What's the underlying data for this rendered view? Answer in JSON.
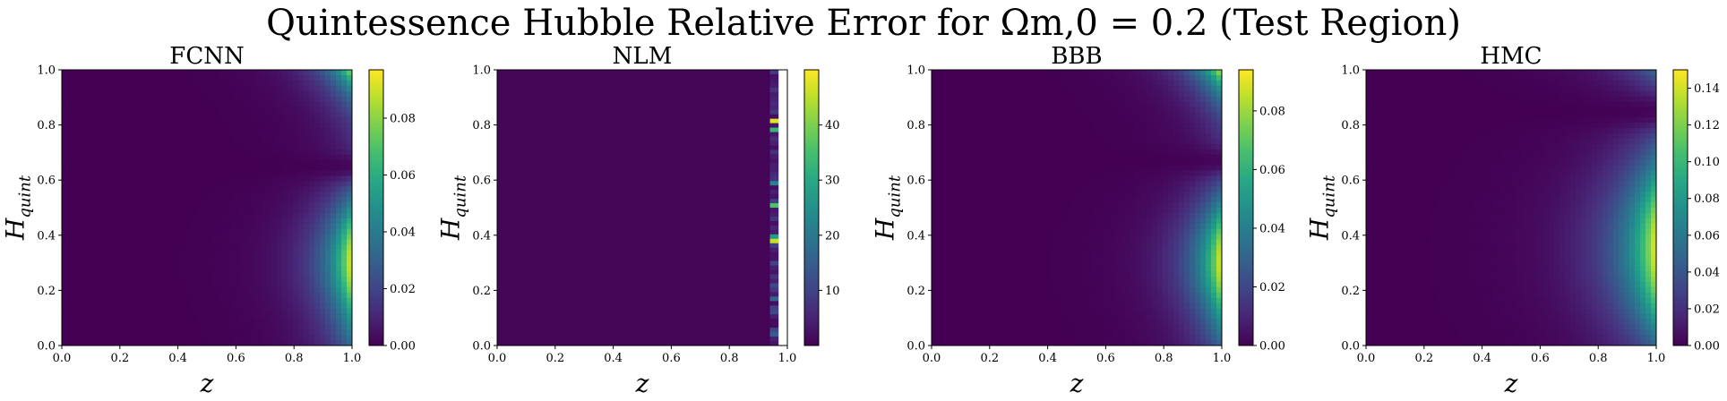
{
  "figure": {
    "title": "Quintessence Hubble Relative Error for Ωm,0 = 0.2 (Test Region)"
  },
  "chart_data": [
    {
      "type": "heatmap",
      "title": "FCNN",
      "xlabel": "z",
      "ylabel": "Hquint",
      "xlim": [
        0.0,
        1.0
      ],
      "ylim": [
        0.0,
        1.0
      ],
      "xticks": [
        "0.0",
        "0.2",
        "0.4",
        "0.6",
        "0.8",
        "1.0"
      ],
      "yticks": [
        "0.0",
        "0.2",
        "0.4",
        "0.6",
        "0.8",
        "1.0"
      ],
      "colormap": "viridis",
      "colorbar": {
        "range": [
          0.0,
          0.097
        ],
        "ticks": [
          "0.00",
          "0.02",
          "0.04",
          "0.06",
          "0.08"
        ]
      },
      "pattern": "right-edge error lobes: peak ~0.097 near z=1, H~0.3; secondary peak ~0.08 near z=1, H~1.0; minimum near H~0.65"
    },
    {
      "type": "heatmap",
      "title": "NLM",
      "xlabel": "z",
      "ylabel": "Hquint",
      "xlim": [
        0.0,
        1.0
      ],
      "ylim": [
        0.0,
        1.0
      ],
      "xticks": [
        "0.0",
        "0.2",
        "0.4",
        "0.6",
        "0.8",
        "1.0"
      ],
      "yticks": [
        "0.0",
        "0.2",
        "0.4",
        "0.6",
        "0.8",
        "1.0"
      ],
      "colormap": "viridis",
      "colorbar": {
        "range": [
          0.0,
          50.0
        ],
        "ticks": [
          "10",
          "20",
          "30",
          "40"
        ]
      },
      "pattern": "near-zero everywhere except a noisy vertical stripe at z~0.95-0.97 with values up to ~48; white (undefined) region for z>0.97"
    },
    {
      "type": "heatmap",
      "title": "BBB",
      "xlabel": "z",
      "ylabel": "Hquint",
      "xlim": [
        0.0,
        1.0
      ],
      "ylim": [
        0.0,
        1.0
      ],
      "xticks": [
        "0.0",
        "0.2",
        "0.4",
        "0.6",
        "0.8",
        "1.0"
      ],
      "yticks": [
        "0.0",
        "0.2",
        "0.4",
        "0.6",
        "0.8",
        "1.0"
      ],
      "colormap": "viridis",
      "colorbar": {
        "range": [
          0.0,
          0.094
        ],
        "ticks": [
          "0.00",
          "0.02",
          "0.04",
          "0.06",
          "0.08"
        ]
      },
      "pattern": "right-edge error lobes: peak ~0.09 near z=1, H~0.3; secondary peak ~0.09 near z=1, H~1.0; minimum near H~0.67"
    },
    {
      "type": "heatmap",
      "title": "HMC",
      "xlabel": "z",
      "ylabel": "Hquint",
      "xlim": [
        0.0,
        1.0
      ],
      "ylim": [
        0.0,
        1.0
      ],
      "xticks": [
        "0.0",
        "0.2",
        "0.4",
        "0.6",
        "0.8",
        "1.0"
      ],
      "yticks": [
        "0.0",
        "0.2",
        "0.4",
        "0.6",
        "0.8",
        "1.0"
      ],
      "colormap": "viridis",
      "colorbar": {
        "range": [
          0.0,
          0.15
        ],
        "ticks": [
          "0.00",
          "0.02",
          "0.04",
          "0.06",
          "0.08",
          "0.10",
          "0.12",
          "0.14"
        ]
      },
      "pattern": "broad right-edge error lobe: peak ~0.15 near z=1, H~0.35; minimum near H~0.85; moderate value ~0.05 at H=1"
    }
  ]
}
